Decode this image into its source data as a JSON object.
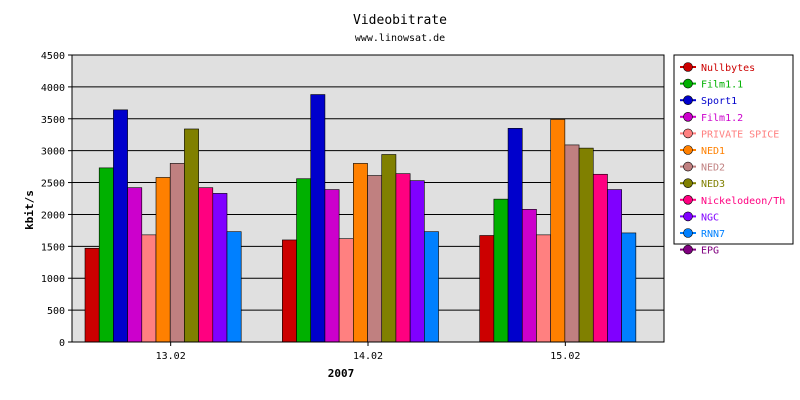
{
  "chart_data": {
    "type": "bar",
    "title": "Videobitrate",
    "subtitle": "www.linowsat.de",
    "xlabel": "2007",
    "ylabel": "kbit/s",
    "ylim": [
      0,
      4500
    ],
    "yticks": [
      0,
      500,
      1000,
      1500,
      2000,
      2500,
      3000,
      3500,
      4000,
      4500
    ],
    "grid": true,
    "legend": "right",
    "categories": [
      "13.02",
      "14.02",
      "15.02"
    ],
    "series": [
      {
        "name": "Nullbytes",
        "color": "#cc0000",
        "values": [
          1470,
          1600,
          1670
        ]
      },
      {
        "name": "Film1.1",
        "color": "#00b000",
        "values": [
          2730,
          2560,
          2240
        ]
      },
      {
        "name": "Sport1",
        "color": "#0000cc",
        "values": [
          3640,
          3880,
          3350
        ]
      },
      {
        "name": "Film1.2",
        "color": "#cc00cc",
        "values": [
          2420,
          2390,
          2080
        ]
      },
      {
        "name": "PRIVATE SPICE",
        "color": "#ff8080",
        "values": [
          1680,
          1620,
          1680
        ]
      },
      {
        "name": "NED1",
        "color": "#ff8000",
        "values": [
          2580,
          2800,
          3490
        ]
      },
      {
        "name": "NED2",
        "color": "#c08080",
        "values": [
          2800,
          2610,
          3090
        ]
      },
      {
        "name": "NED3",
        "color": "#808000",
        "values": [
          3340,
          2940,
          3040
        ]
      },
      {
        "name": "Nickelodeon/Th",
        "color": "#ff0080",
        "values": [
          2420,
          2640,
          2630
        ]
      },
      {
        "name": "NGC",
        "color": "#8000ff",
        "values": [
          2330,
          2530,
          2390
        ]
      },
      {
        "name": "RNN7",
        "color": "#0080ff",
        "values": [
          1730,
          1730,
          1710
        ]
      },
      {
        "name": "EPG",
        "color": "#800080",
        "values": [
          0,
          0,
          0
        ]
      }
    ]
  }
}
